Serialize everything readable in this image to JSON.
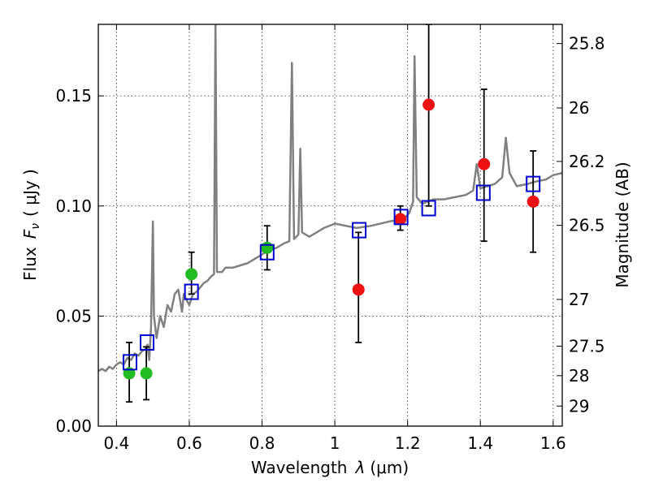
{
  "chart_data": {
    "type": "scatter",
    "title": "",
    "xlabel": "Wavelength",
    "xlabel_symbol": "λ",
    "xlabel_unit": "(μm)",
    "ylabel": "Flux",
    "ylabel_symbol": "F",
    "ylabel_subscript": "ν",
    "ylabel_unit": "( μJy )",
    "y2label": "Magnitude (AB)",
    "xlim": [
      0.35,
      1.625
    ],
    "ylim": [
      0.0,
      0.1825
    ],
    "grid": true,
    "xticks": [
      {
        "value": 0.4,
        "label": "0.4"
      },
      {
        "value": 0.6,
        "label": "0.6"
      },
      {
        "value": 0.8,
        "label": "0.8"
      },
      {
        "value": 1.0,
        "label": "1"
      },
      {
        "value": 1.2,
        "label": "1.2"
      },
      {
        "value": 1.4,
        "label": "1.4"
      },
      {
        "value": 1.6,
        "label": "1.6"
      }
    ],
    "yticks": [
      {
        "value": 0.0,
        "label": "0.00"
      },
      {
        "value": 0.05,
        "label": "0.05"
      },
      {
        "value": 0.1,
        "label": "0.10"
      },
      {
        "value": 0.15,
        "label": "0.15"
      }
    ],
    "y2ticks": [
      {
        "mag": 25.8,
        "label": "25.8"
      },
      {
        "mag": 26.0,
        "label": "26"
      },
      {
        "mag": 26.2,
        "label": "26.2"
      },
      {
        "mag": 26.5,
        "label": "26.5"
      },
      {
        "mag": 27.0,
        "label": "27"
      },
      {
        "mag": 27.5,
        "label": "27.5"
      },
      {
        "mag": 28.0,
        "label": "28"
      },
      {
        "mag": 29.0,
        "label": "29"
      }
    ],
    "colors": {
      "spectrum": "#808080",
      "observed_optical": "#22bb22",
      "observed_nir": "#ee1111",
      "model": "#0000cc",
      "errorbar": "#000000"
    },
    "series": [
      {
        "name": "model spectrum",
        "kind": "line",
        "points": [
          [
            0.35,
            0.025
          ],
          [
            0.36,
            0.026
          ],
          [
            0.37,
            0.025
          ],
          [
            0.38,
            0.027
          ],
          [
            0.39,
            0.026
          ],
          [
            0.4,
            0.028
          ],
          [
            0.41,
            0.029
          ],
          [
            0.42,
            0.028
          ],
          [
            0.43,
            0.031
          ],
          [
            0.44,
            0.03
          ],
          [
            0.45,
            0.033
          ],
          [
            0.46,
            0.032
          ],
          [
            0.47,
            0.034
          ],
          [
            0.48,
            0.035
          ],
          [
            0.485,
            0.037
          ],
          [
            0.49,
            0.03
          ],
          [
            0.495,
            0.045
          ],
          [
            0.5,
            0.093
          ],
          [
            0.503,
            0.05
          ],
          [
            0.51,
            0.04
          ],
          [
            0.52,
            0.05
          ],
          [
            0.53,
            0.045
          ],
          [
            0.54,
            0.055
          ],
          [
            0.55,
            0.052
          ],
          [
            0.56,
            0.06
          ],
          [
            0.57,
            0.062
          ],
          [
            0.58,
            0.052
          ],
          [
            0.585,
            0.06
          ],
          [
            0.59,
            0.058
          ],
          [
            0.6,
            0.055
          ],
          [
            0.61,
            0.06
          ],
          [
            0.62,
            0.061
          ],
          [
            0.63,
            0.063
          ],
          [
            0.64,
            0.065
          ],
          [
            0.65,
            0.066
          ],
          [
            0.66,
            0.068
          ],
          [
            0.668,
            0.069
          ],
          [
            0.672,
            0.185
          ],
          [
            0.676,
            0.07
          ],
          [
            0.69,
            0.07
          ],
          [
            0.7,
            0.072
          ],
          [
            0.72,
            0.072
          ],
          [
            0.74,
            0.073
          ],
          [
            0.76,
            0.074
          ],
          [
            0.78,
            0.076
          ],
          [
            0.8,
            0.078
          ],
          [
            0.82,
            0.08
          ],
          [
            0.84,
            0.081
          ],
          [
            0.86,
            0.083
          ],
          [
            0.875,
            0.084
          ],
          [
            0.882,
            0.165
          ],
          [
            0.888,
            0.085
          ],
          [
            0.9,
            0.087
          ],
          [
            0.905,
            0.126
          ],
          [
            0.91,
            0.088
          ],
          [
            0.93,
            0.086
          ],
          [
            0.95,
            0.088
          ],
          [
            0.97,
            0.09
          ],
          [
            1.0,
            0.092
          ],
          [
            1.03,
            0.091
          ],
          [
            1.06,
            0.09
          ],
          [
            1.1,
            0.091
          ],
          [
            1.15,
            0.093
          ],
          [
            1.19,
            0.094
          ],
          [
            1.205,
            0.097
          ],
          [
            1.215,
            0.102
          ],
          [
            1.219,
            0.168
          ],
          [
            1.225,
            0.104
          ],
          [
            1.24,
            0.101
          ],
          [
            1.27,
            0.103
          ],
          [
            1.3,
            0.103
          ],
          [
            1.33,
            0.104
          ],
          [
            1.36,
            0.105
          ],
          [
            1.38,
            0.107
          ],
          [
            1.39,
            0.119
          ],
          [
            1.4,
            0.108
          ],
          [
            1.42,
            0.109
          ],
          [
            1.44,
            0.11
          ],
          [
            1.46,
            0.113
          ],
          [
            1.47,
            0.131
          ],
          [
            1.48,
            0.115
          ],
          [
            1.5,
            0.109
          ],
          [
            1.53,
            0.11
          ],
          [
            1.55,
            0.111
          ],
          [
            1.58,
            0.112
          ],
          [
            1.6,
            0.114
          ],
          [
            1.625,
            0.115
          ]
        ]
      },
      {
        "name": "observed optical",
        "kind": "circle",
        "color_key": "observed_optical",
        "points": [
          {
            "x": 0.435,
            "y": 0.024,
            "err": [
              0.011,
              0.038
            ]
          },
          {
            "x": 0.482,
            "y": 0.024,
            "err": [
              0.012,
              0.036
            ]
          },
          {
            "x": 0.606,
            "y": 0.069,
            "err": [
              0.06,
              0.079
            ]
          },
          {
            "x": 0.814,
            "y": 0.081,
            "err": [
              0.071,
              0.091
            ]
          }
        ]
      },
      {
        "name": "observed near-IR",
        "kind": "circle",
        "color_key": "observed_nir",
        "points": [
          {
            "x": 1.065,
            "y": 0.062,
            "err": [
              0.038,
              0.088
            ]
          },
          {
            "x": 1.18,
            "y": 0.094,
            "err": [
              0.089,
              0.1
            ]
          },
          {
            "x": 1.258,
            "y": 0.146,
            "err": [
              0.1,
              0.1825
            ]
          },
          {
            "x": 1.41,
            "y": 0.119,
            "err": [
              0.084,
              0.153
            ]
          },
          {
            "x": 1.545,
            "y": 0.102,
            "err": [
              0.079,
              0.125
            ]
          }
        ]
      },
      {
        "name": "model photometry",
        "kind": "square",
        "color_key": "model",
        "points": [
          {
            "x": 0.437,
            "y": 0.029
          },
          {
            "x": 0.484,
            "y": 0.038
          },
          {
            "x": 0.606,
            "y": 0.061
          },
          {
            "x": 0.814,
            "y": 0.079
          },
          {
            "x": 1.067,
            "y": 0.089
          },
          {
            "x": 1.182,
            "y": 0.095
          },
          {
            "x": 1.258,
            "y": 0.099
          },
          {
            "x": 1.408,
            "y": 0.106
          },
          {
            "x": 1.545,
            "y": 0.11
          }
        ]
      }
    ]
  }
}
